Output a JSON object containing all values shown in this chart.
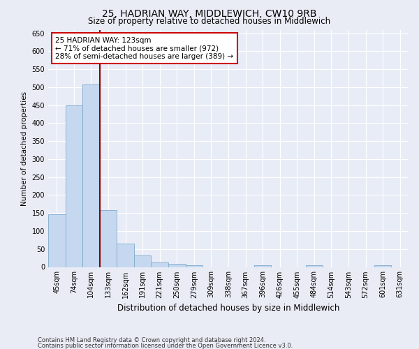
{
  "title1": "25, HADRIAN WAY, MIDDLEWICH, CW10 9RB",
  "title2": "Size of property relative to detached houses in Middlewich",
  "xlabel": "Distribution of detached houses by size in Middlewich",
  "ylabel": "Number of detached properties",
  "footer1": "Contains HM Land Registry data © Crown copyright and database right 2024.",
  "footer2": "Contains public sector information licensed under the Open Government Licence v3.0.",
  "annotation_line1": "25 HADRIAN WAY: 123sqm",
  "annotation_line2": "← 71% of detached houses are smaller (972)",
  "annotation_line3": "28% of semi-detached houses are larger (389) →",
  "bar_categories": [
    "45sqm",
    "74sqm",
    "104sqm",
    "133sqm",
    "162sqm",
    "191sqm",
    "221sqm",
    "250sqm",
    "279sqm",
    "309sqm",
    "338sqm",
    "367sqm",
    "396sqm",
    "426sqm",
    "455sqm",
    "484sqm",
    "514sqm",
    "543sqm",
    "572sqm",
    "601sqm",
    "631sqm"
  ],
  "bar_values": [
    147,
    450,
    507,
    158,
    65,
    33,
    13,
    8,
    5,
    0,
    0,
    0,
    5,
    0,
    0,
    5,
    0,
    0,
    0,
    5,
    0
  ],
  "bar_color": "#c5d8f0",
  "bar_edge_color": "#7faacc",
  "vline_color": "#8b0000",
  "ylim": [
    0,
    660
  ],
  "yticks": [
    0,
    50,
    100,
    150,
    200,
    250,
    300,
    350,
    400,
    450,
    500,
    550,
    600,
    650
  ],
  "bg_color": "#eaecf5",
  "plot_bg_color": "#e8ecf7",
  "grid_color": "#ffffff",
  "annot_box_color": "#ffffff",
  "annot_box_edge": "#cc0000",
  "title1_fontsize": 10,
  "title2_fontsize": 8.5,
  "ylabel_fontsize": 7.5,
  "xlabel_fontsize": 8.5,
  "tick_fontsize": 7,
  "annot_fontsize": 7.5,
  "footer_fontsize": 6
}
